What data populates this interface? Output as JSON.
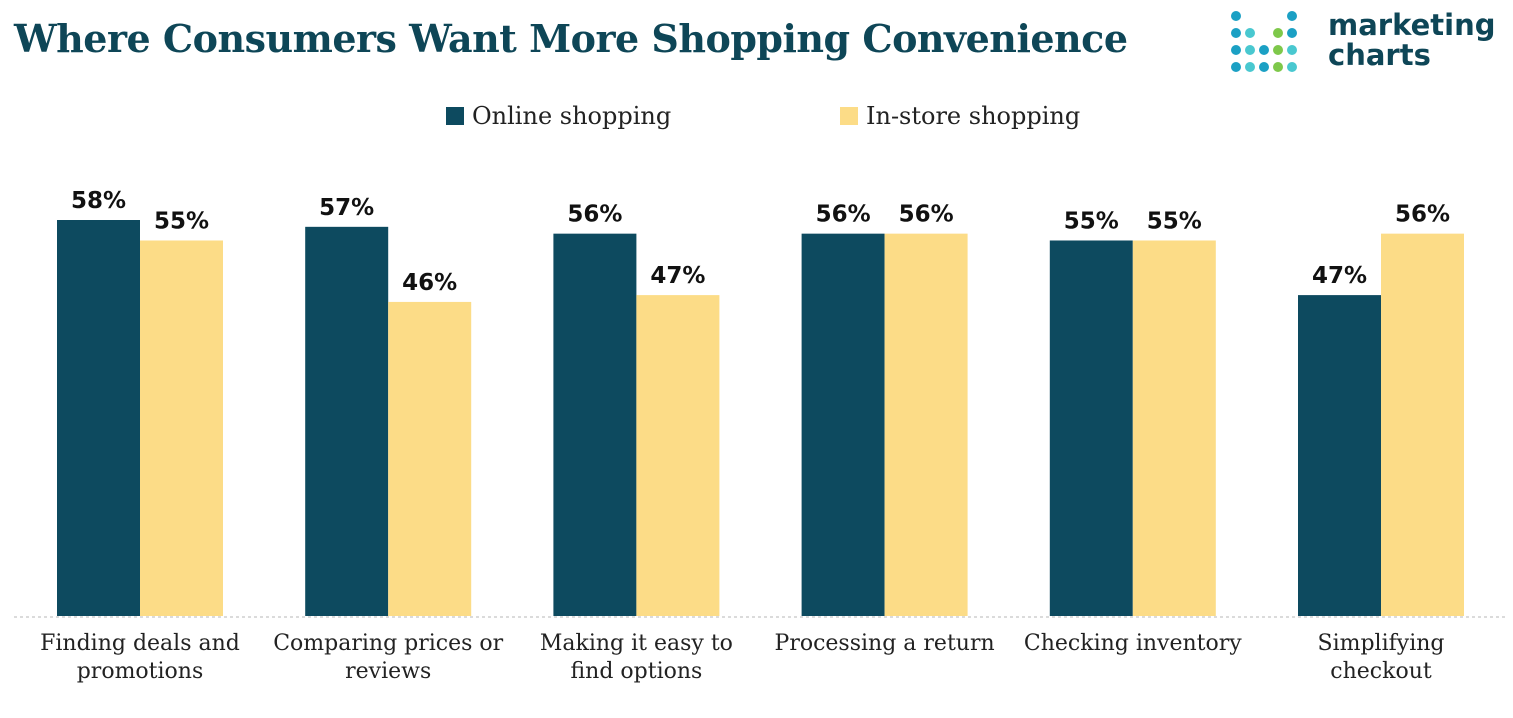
{
  "header": {
    "title": "Where Consumers Want More Shopping Convenience",
    "logo_line1": "marketing",
    "logo_line2": "charts"
  },
  "colors": {
    "online": "#0d4a5f",
    "instore": "#fcdc87",
    "title": "#0e4657",
    "logo_dots": [
      "#1ba0c4",
      "#49c8d0",
      "#7ec84a"
    ]
  },
  "chart_data": {
    "type": "bar",
    "title": "Where Consumers Want More Shopping Convenience",
    "xlabel": "",
    "ylabel": "",
    "ylim": [
      0,
      60
    ],
    "grid": false,
    "legend_position": "top-center",
    "categories": [
      [
        "Finding deals and",
        "promotions"
      ],
      [
        "Comparing prices or",
        "reviews"
      ],
      [
        "Making it easy to",
        "find options"
      ],
      [
        "Processing a return"
      ],
      [
        "Checking inventory"
      ],
      [
        "Simplifying",
        "checkout"
      ]
    ],
    "series": [
      {
        "name": "Online shopping",
        "values": [
          58,
          57,
          56,
          56,
          55,
          47
        ]
      },
      {
        "name": "In-store shopping",
        "values": [
          55,
          46,
          47,
          56,
          55,
          56
        ]
      }
    ],
    "value_suffix": "%"
  }
}
